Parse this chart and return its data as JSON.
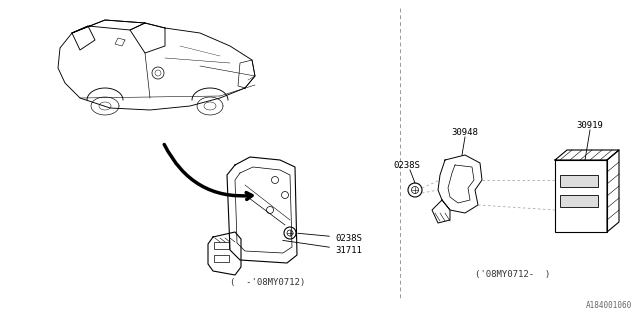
{
  "bg_color": "#ffffff",
  "line_color": "#000000",
  "fig_width": 6.4,
  "fig_height": 3.2,
  "dpi": 100,
  "labels": {
    "left_label1": "0238S",
    "left_label2": "31711",
    "left_caption": "(  -'08MY0712)",
    "right_label1": "0238S",
    "right_label2": "30948",
    "right_label3": "30919",
    "right_caption": "('08MY0712-  )",
    "part_number": "A184001060"
  }
}
